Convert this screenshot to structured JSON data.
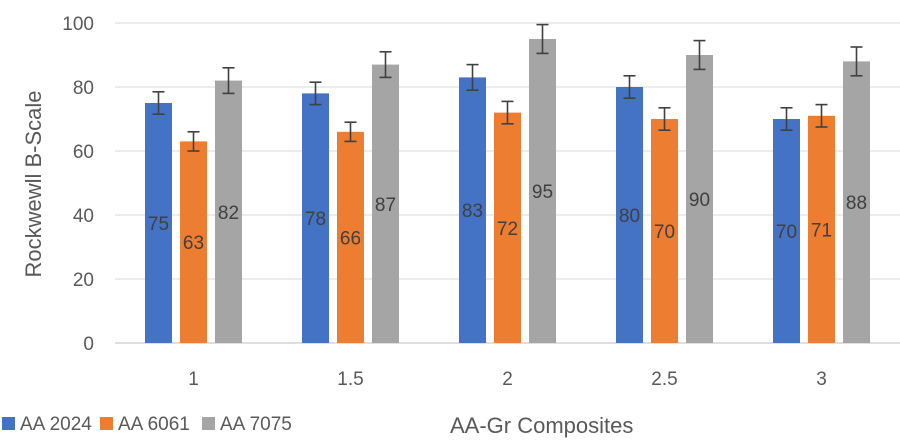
{
  "chart_data": {
    "type": "bar",
    "categories": [
      "1",
      "1.5",
      "2",
      "2.5",
      "3"
    ],
    "series": [
      {
        "name": "AA 2024",
        "color": "#4472C4",
        "values": [
          75,
          78,
          83,
          80,
          70
        ],
        "error": [
          3.5,
          3.5,
          4,
          3.5,
          3.5
        ]
      },
      {
        "name": "AA 6061",
        "color": "#ED7D31",
        "values": [
          63,
          66,
          72,
          70,
          71
        ],
        "error": [
          3,
          3,
          3.5,
          3.5,
          3.5
        ]
      },
      {
        "name": "AA 7075",
        "color": "#A5A5A5",
        "values": [
          82,
          87,
          95,
          90,
          88
        ],
        "error": [
          4,
          4,
          4.5,
          4.5,
          4.5
        ]
      }
    ],
    "xlabel": "AA-Gr Composites",
    "ylabel": "Rockwewll B-Scale",
    "ylim": [
      0,
      100
    ],
    "yticks": [
      0,
      20,
      40,
      60,
      80,
      100
    ],
    "grid": true,
    "legend_position": "bottom-left",
    "data_labels": true,
    "error_bars": true
  }
}
